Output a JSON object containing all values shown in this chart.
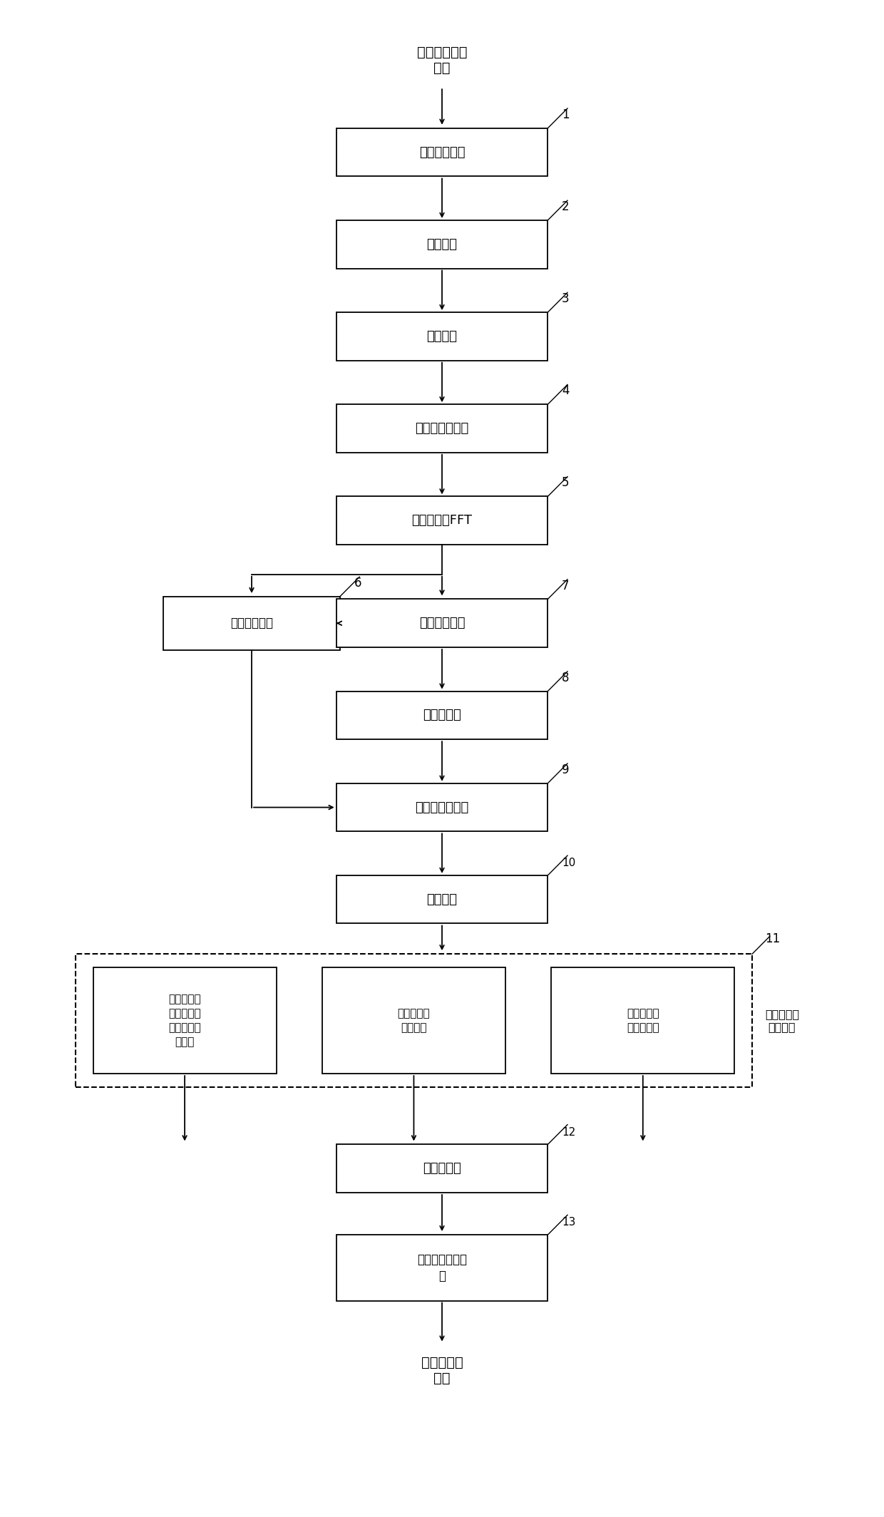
{
  "bg_color": "#ffffff",
  "top_label": "气象回波数据\n输入",
  "bottom_label": "气象基数据\n输出",
  "box1_label": "数字中频鉴相",
  "box2_label": "脉冲压缩",
  "box3_label": "数据重拍",
  "box4_label": "偶发强干扰抑制",
  "box5_label": "时域加窗及FFT",
  "box6_label": "噪声功率估计",
  "box7_label": "地物杂波抑制",
  "box8_label": "点杂波抑制",
  "box9_label": "自相关参数估计",
  "box10_label": "距离平均",
  "sub11a_label": "雷达参数修\n正补偿及气\n象反射率因\n子估计",
  "sub11b_label": "气象速度、\n谱宽估计",
  "sub11c_label": "数据质量控\n制因子计算",
  "module11_side_label": "距离和强度\n校正模块",
  "box12_label": "过门限处理",
  "box13_label": "气象信息发送模\n块",
  "num1": "1",
  "num2": "2",
  "num3": "3",
  "num4": "4",
  "num5": "5",
  "num6": "6",
  "num7": "7",
  "num8": "8",
  "num9": "9",
  "num10": "10",
  "num11": "11",
  "num12": "12",
  "num13": "13"
}
